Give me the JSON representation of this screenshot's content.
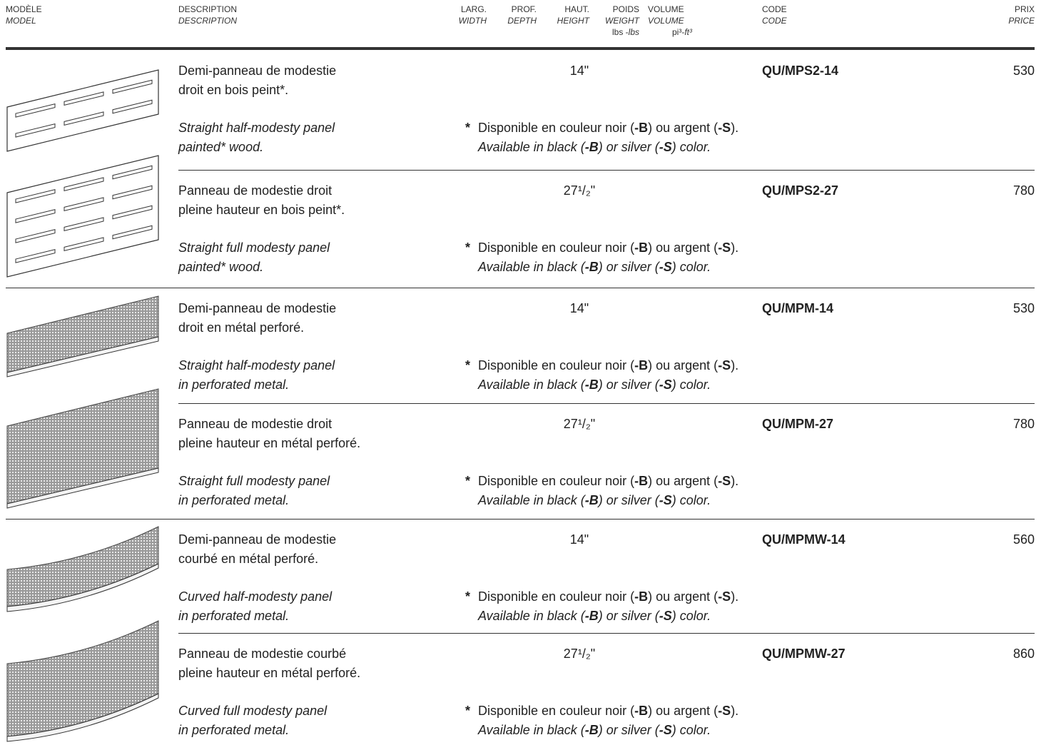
{
  "header": {
    "columns": [
      {
        "fr": "MODÈLE",
        "en": "MODEL"
      },
      {
        "fr": "DESCRIPTION",
        "en": "DESCRIPTION"
      },
      {
        "fr": "LARG.",
        "en": "WIDTH"
      },
      {
        "fr": "PROF.",
        "en": "DEPTH"
      },
      {
        "fr": "HAUT.",
        "en": "HEIGHT"
      },
      {
        "fr": "POIDS",
        "en": "WEIGHT",
        "unit": [
          "lbs -",
          "lbs"
        ]
      },
      {
        "fr": "VOLUME",
        "en": "VOLUME",
        "unit": [
          "pi³-",
          "ft³"
        ]
      },
      {
        "fr": "CODE",
        "en": "CODE"
      },
      {
        "fr": "PRIX",
        "en": "PRICE"
      }
    ]
  },
  "rows": [
    {
      "fr": [
        "Demi-panneau de modestie",
        "droit en bois peint*."
      ],
      "en": [
        "Straight half-modesty panel",
        "painted* wood."
      ],
      "height": "14\"",
      "code": "QU/MPS2-14",
      "price": 530,
      "note": {
        "marker": "*",
        "fr": [
          "Disponible en couleur noir (",
          "-B",
          ") ou argent (",
          "-S",
          ")."
        ],
        "en": [
          "Available in black (",
          "-B",
          ") or silver (",
          "-S",
          ") color."
        ]
      }
    },
    {
      "fr": [
        "Panneau de modestie droit",
        "pleine hauteur en bois peint*."
      ],
      "en": [
        "Straight full modesty panel",
        "painted* wood."
      ],
      "height": "27¹/₂\"",
      "code": "QU/MPS2-27",
      "price": 780,
      "note": {
        "marker": "*",
        "fr": [
          "Disponible en couleur noir (",
          "-B",
          ") ou argent (",
          "-S",
          ")."
        ],
        "en": [
          "Available in black (",
          "-B",
          ") or silver (",
          "-S",
          ") color."
        ]
      }
    },
    {
      "fr": [
        "Demi-panneau de modestie",
        "droit en métal perforé."
      ],
      "en": [
        "Straight half-modesty panel",
        "in perforated metal."
      ],
      "height": "14\"",
      "code": "QU/MPM-14",
      "price": 530,
      "note": {
        "marker": "*",
        "fr": [
          "Disponible en couleur noir (",
          "-B",
          ") ou argent (",
          "-S",
          ")."
        ],
        "en": [
          "Available in black (",
          "-B",
          ") or silver (",
          "-S",
          ") color."
        ]
      }
    },
    {
      "fr": [
        "Panneau de modestie droit",
        "pleine hauteur en métal perforé."
      ],
      "en": [
        "Straight full modesty panel",
        "in perforated metal."
      ],
      "height": "27¹/₂\"",
      "code": "QU/MPM-27",
      "price": 780,
      "note": {
        "marker": "*",
        "fr": [
          "Disponible en couleur noir (",
          "-B",
          ") ou argent (",
          "-S",
          ")."
        ],
        "en": [
          "Available in black (",
          "-B",
          ") or silver (",
          "-S",
          ") color."
        ]
      }
    },
    {
      "fr": [
        "Demi-panneau de modestie",
        "courbé en métal perforé."
      ],
      "en": [
        "Curved half-modesty panel",
        "in perforated metal."
      ],
      "height": "14\"",
      "code": "QU/MPMW-14",
      "price": 560,
      "note": {
        "marker": "*",
        "fr": [
          "Disponible en couleur noir (",
          "-B",
          ") ou argent (",
          "-S",
          ")."
        ],
        "en": [
          "Available in black (",
          "-B",
          ") or silver (",
          "-S",
          ") color."
        ]
      }
    },
    {
      "fr": [
        "Panneau de modestie courbé",
        "pleine hauteur en métal perforé."
      ],
      "en": [
        "Curved full modesty panel",
        "in perforated metal."
      ],
      "height": "27¹/₂\"",
      "code": "QU/MPMW-27",
      "price": 860,
      "note": {
        "marker": "*",
        "fr": [
          "Disponible en couleur noir (",
          "-B",
          ") ou argent (",
          "-S",
          ")."
        ],
        "en": [
          "Available in black (",
          "-B",
          ") or silver (",
          "-S",
          ") color."
        ]
      }
    }
  ]
}
